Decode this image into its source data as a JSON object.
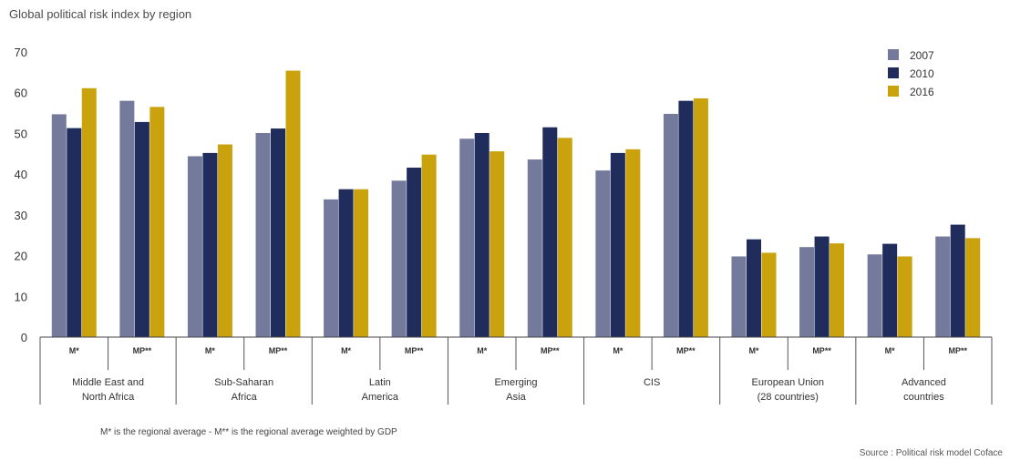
{
  "chart_data": {
    "type": "bar",
    "title": "Global political risk index by region",
    "ylim": [
      0,
      70
    ],
    "yticks": [
      0,
      10,
      20,
      30,
      40,
      50,
      60,
      70
    ],
    "legend_position": "top-right",
    "groups": [
      {
        "name": "Middle East and North Africa",
        "lines": [
          "Middle East and",
          "North Africa"
        ]
      },
      {
        "name": "Sub-Saharan Africa",
        "lines": [
          "Sub-Saharan",
          "Africa"
        ]
      },
      {
        "name": "Latin America",
        "lines": [
          "Latin",
          "America"
        ]
      },
      {
        "name": "Emerging Asia",
        "lines": [
          "Emerging",
          "Asia"
        ]
      },
      {
        "name": "CIS",
        "lines": [
          "CIS"
        ]
      },
      {
        "name": "European Union (28 countries)",
        "lines": [
          "European Union",
          "(28 countries)"
        ]
      },
      {
        "name": "Advanced countries",
        "lines": [
          "Advanced",
          "countries"
        ]
      }
    ],
    "sub_categories": [
      "M*",
      "MP**"
    ],
    "categories": [
      "Middle East and North Africa M*",
      "Middle East and North Africa MP**",
      "Sub-Saharan Africa M*",
      "Sub-Saharan Africa MP**",
      "Latin America M*",
      "Latin America MP**",
      "Emerging Asia M*",
      "Emerging Asia MP**",
      "CIS M*",
      "CIS MP**",
      "European Union (28 countries) M*",
      "European Union (28 countries) MP**",
      "Advanced countries M*",
      "Advanced countries MP**"
    ],
    "series": [
      {
        "name": "2007",
        "color": "#747a9c",
        "values": [
          54.7,
          58.0,
          44.4,
          50.1,
          33.8,
          38.4,
          48.7,
          43.6,
          40.9,
          54.8,
          19.8,
          22.1,
          20.3,
          24.7
        ]
      },
      {
        "name": "2010",
        "color": "#1f2c5c",
        "values": [
          51.3,
          52.8,
          45.2,
          51.2,
          36.3,
          41.6,
          50.1,
          51.5,
          45.2,
          58.0,
          24.0,
          24.7,
          22.9,
          27.6
        ]
      },
      {
        "name": "2016",
        "color": "#c9a20e",
        "values": [
          61.1,
          56.5,
          47.3,
          65.4,
          36.3,
          44.8,
          45.6,
          48.9,
          46.1,
          58.6,
          20.7,
          23.0,
          19.8,
          24.3
        ]
      }
    ]
  },
  "footnote": "M* is the regional average - M** is the regional average weighted by GDP",
  "source": "Source : Political risk model Coface"
}
